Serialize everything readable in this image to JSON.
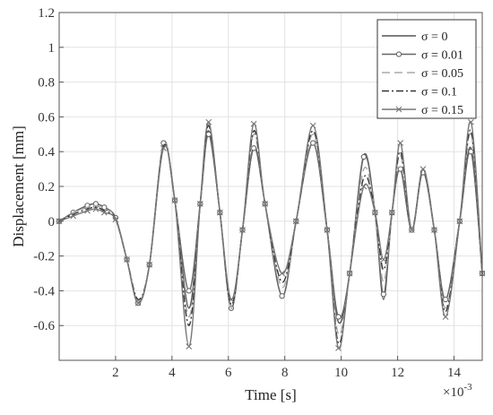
{
  "chart_data": {
    "type": "line",
    "title": "",
    "xlabel": "Time [s]",
    "ylabel": "Displacement [mm]",
    "x_exponent_label": "×10",
    "x_exponent_power": "-3",
    "xlim": [
      0,
      15
    ],
    "ylim": [
      -0.8,
      1.2
    ],
    "grid": true,
    "legend_position": "top-right",
    "x_ticks": [
      2,
      4,
      6,
      8,
      10,
      12,
      14
    ],
    "x_tick_labels": [
      "2",
      "4",
      "6",
      "8",
      "10",
      "12",
      "14"
    ],
    "y_ticks": [
      -0.6,
      -0.4,
      -0.2,
      0,
      0.2,
      0.4,
      0.6,
      0.8,
      1,
      1.2
    ],
    "y_tick_labels": [
      "-0.6",
      "-0.4",
      "-0.2",
      "0",
      "0.2",
      "0.4",
      "0.6",
      "0.8",
      "1",
      "1.2"
    ],
    "x": [
      0,
      0.5,
      1.0,
      1.3,
      1.6,
      2.0,
      2.4,
      2.8,
      3.2,
      3.7,
      4.1,
      4.6,
      5.0,
      5.3,
      5.7,
      6.1,
      6.5,
      6.9,
      7.3,
      7.9,
      8.4,
      9.0,
      9.5,
      9.9,
      10.3,
      10.8,
      11.2,
      11.5,
      11.8,
      12.1,
      12.5,
      12.9,
      13.3,
      13.7,
      14.2,
      14.6,
      15.0
    ],
    "series": [
      {
        "name": "σ = 0",
        "color": "#555555",
        "dash": "",
        "marker": "none",
        "values": [
          0,
          0.05,
          0.09,
          0.1,
          0.08,
          0.02,
          -0.22,
          -0.47,
          -0.25,
          0.44,
          0.12,
          -0.5,
          0.1,
          0.52,
          0.05,
          -0.5,
          -0.05,
          0.43,
          0.1,
          -0.43,
          0.0,
          0.45,
          -0.05,
          -0.58,
          -0.3,
          0.38,
          0.05,
          -0.45,
          0.05,
          0.3,
          -0.05,
          0.3,
          -0.05,
          -0.45,
          0.0,
          0.42,
          -0.3
        ]
      },
      {
        "name": "σ = 0.01",
        "color": "#666666",
        "dash": "",
        "marker": "circle",
        "values": [
          0,
          0.05,
          0.09,
          0.1,
          0.08,
          0.02,
          -0.22,
          -0.47,
          -0.25,
          0.45,
          0.12,
          -0.4,
          0.1,
          0.5,
          0.05,
          -0.5,
          -0.05,
          0.42,
          0.1,
          -0.43,
          0.0,
          0.45,
          -0.05,
          -0.55,
          -0.3,
          0.37,
          0.05,
          -0.42,
          0.05,
          0.3,
          -0.05,
          0.28,
          -0.05,
          -0.45,
          0.0,
          0.4,
          -0.3
        ]
      },
      {
        "name": "σ = 0.05",
        "color": "#aaaaaa",
        "dash": "9,5",
        "marker": "none",
        "values": [
          0,
          0.05,
          0.08,
          0.09,
          0.07,
          0.02,
          -0.22,
          -0.46,
          -0.25,
          0.44,
          0.12,
          -0.55,
          0.1,
          0.56,
          0.05,
          -0.5,
          -0.05,
          0.5,
          0.1,
          -0.38,
          0.0,
          0.5,
          -0.05,
          -0.65,
          -0.3,
          0.3,
          0.05,
          -0.35,
          0.05,
          0.38,
          -0.05,
          0.3,
          -0.05,
          -0.5,
          0.0,
          0.5,
          -0.3
        ]
      },
      {
        "name": "σ = 0.1",
        "color": "#333333",
        "dash": "8,3,2,3",
        "marker": "none",
        "values": [
          0,
          0.04,
          0.07,
          0.08,
          0.06,
          0.01,
          -0.22,
          -0.45,
          -0.25,
          0.43,
          0.12,
          -0.6,
          0.1,
          0.55,
          0.05,
          -0.48,
          -0.05,
          0.52,
          0.1,
          -0.35,
          0.0,
          0.52,
          -0.05,
          -0.7,
          -0.3,
          0.25,
          0.05,
          -0.28,
          0.05,
          0.4,
          -0.05,
          0.3,
          -0.05,
          -0.52,
          0.0,
          0.52,
          -0.3
        ]
      },
      {
        "name": "σ = 0.15",
        "color": "#777777",
        "dash": "",
        "marker": "x",
        "values": [
          0,
          0.03,
          0.06,
          0.07,
          0.05,
          0.01,
          -0.22,
          -0.47,
          -0.25,
          0.42,
          0.12,
          -0.72,
          0.1,
          0.57,
          0.05,
          -0.45,
          -0.05,
          0.56,
          0.1,
          -0.3,
          0.0,
          0.55,
          -0.05,
          -0.73,
          -0.3,
          0.2,
          0.05,
          -0.22,
          0.05,
          0.45,
          -0.05,
          0.3,
          -0.05,
          -0.55,
          0.0,
          0.57,
          -0.3
        ]
      }
    ]
  }
}
